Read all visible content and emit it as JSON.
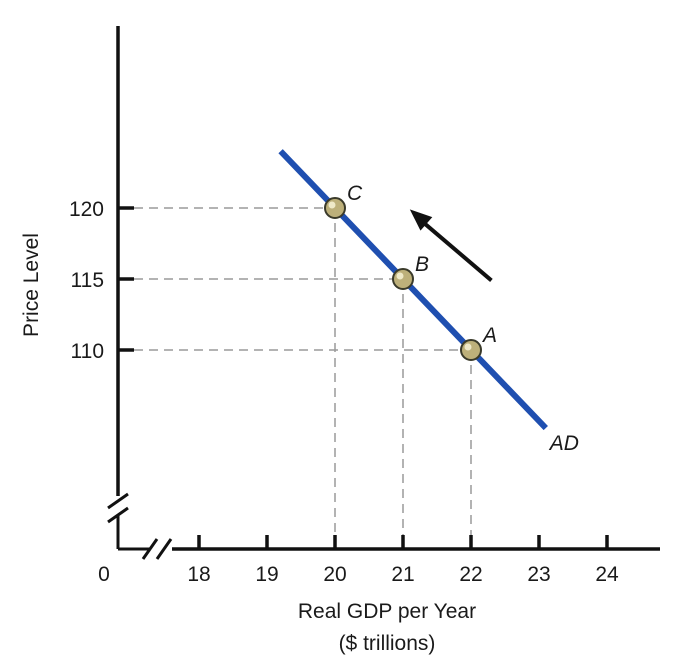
{
  "chart_data": {
    "type": "line",
    "ylabel": "Price Level",
    "xlabel": [
      "Real GDP per Year",
      "($ trillions)"
    ],
    "origin_label": "0",
    "x_ticks": [
      18,
      19,
      20,
      21,
      22,
      23,
      24
    ],
    "y_ticks": [
      110,
      115,
      120
    ],
    "axis_breaks": {
      "x": true,
      "y": true
    },
    "series": [
      {
        "name": "AD",
        "color": "#1f4fb0",
        "x": [
          19.2,
          23.1
        ],
        "y": [
          124,
          104.5
        ]
      }
    ],
    "points": [
      {
        "label": "A",
        "x": 22,
        "y": 110
      },
      {
        "label": "B",
        "x": 21,
        "y": 115
      },
      {
        "label": "C",
        "x": 20,
        "y": 120
      }
    ],
    "arrow": {
      "direction": "up-left",
      "from": {
        "x": 22.3,
        "y": 114.9
      },
      "to": {
        "x": 21.1,
        "y": 119.9
      },
      "color": "#111111"
    },
    "guide_lines": "dashed",
    "grid": false,
    "legend": "none"
  }
}
